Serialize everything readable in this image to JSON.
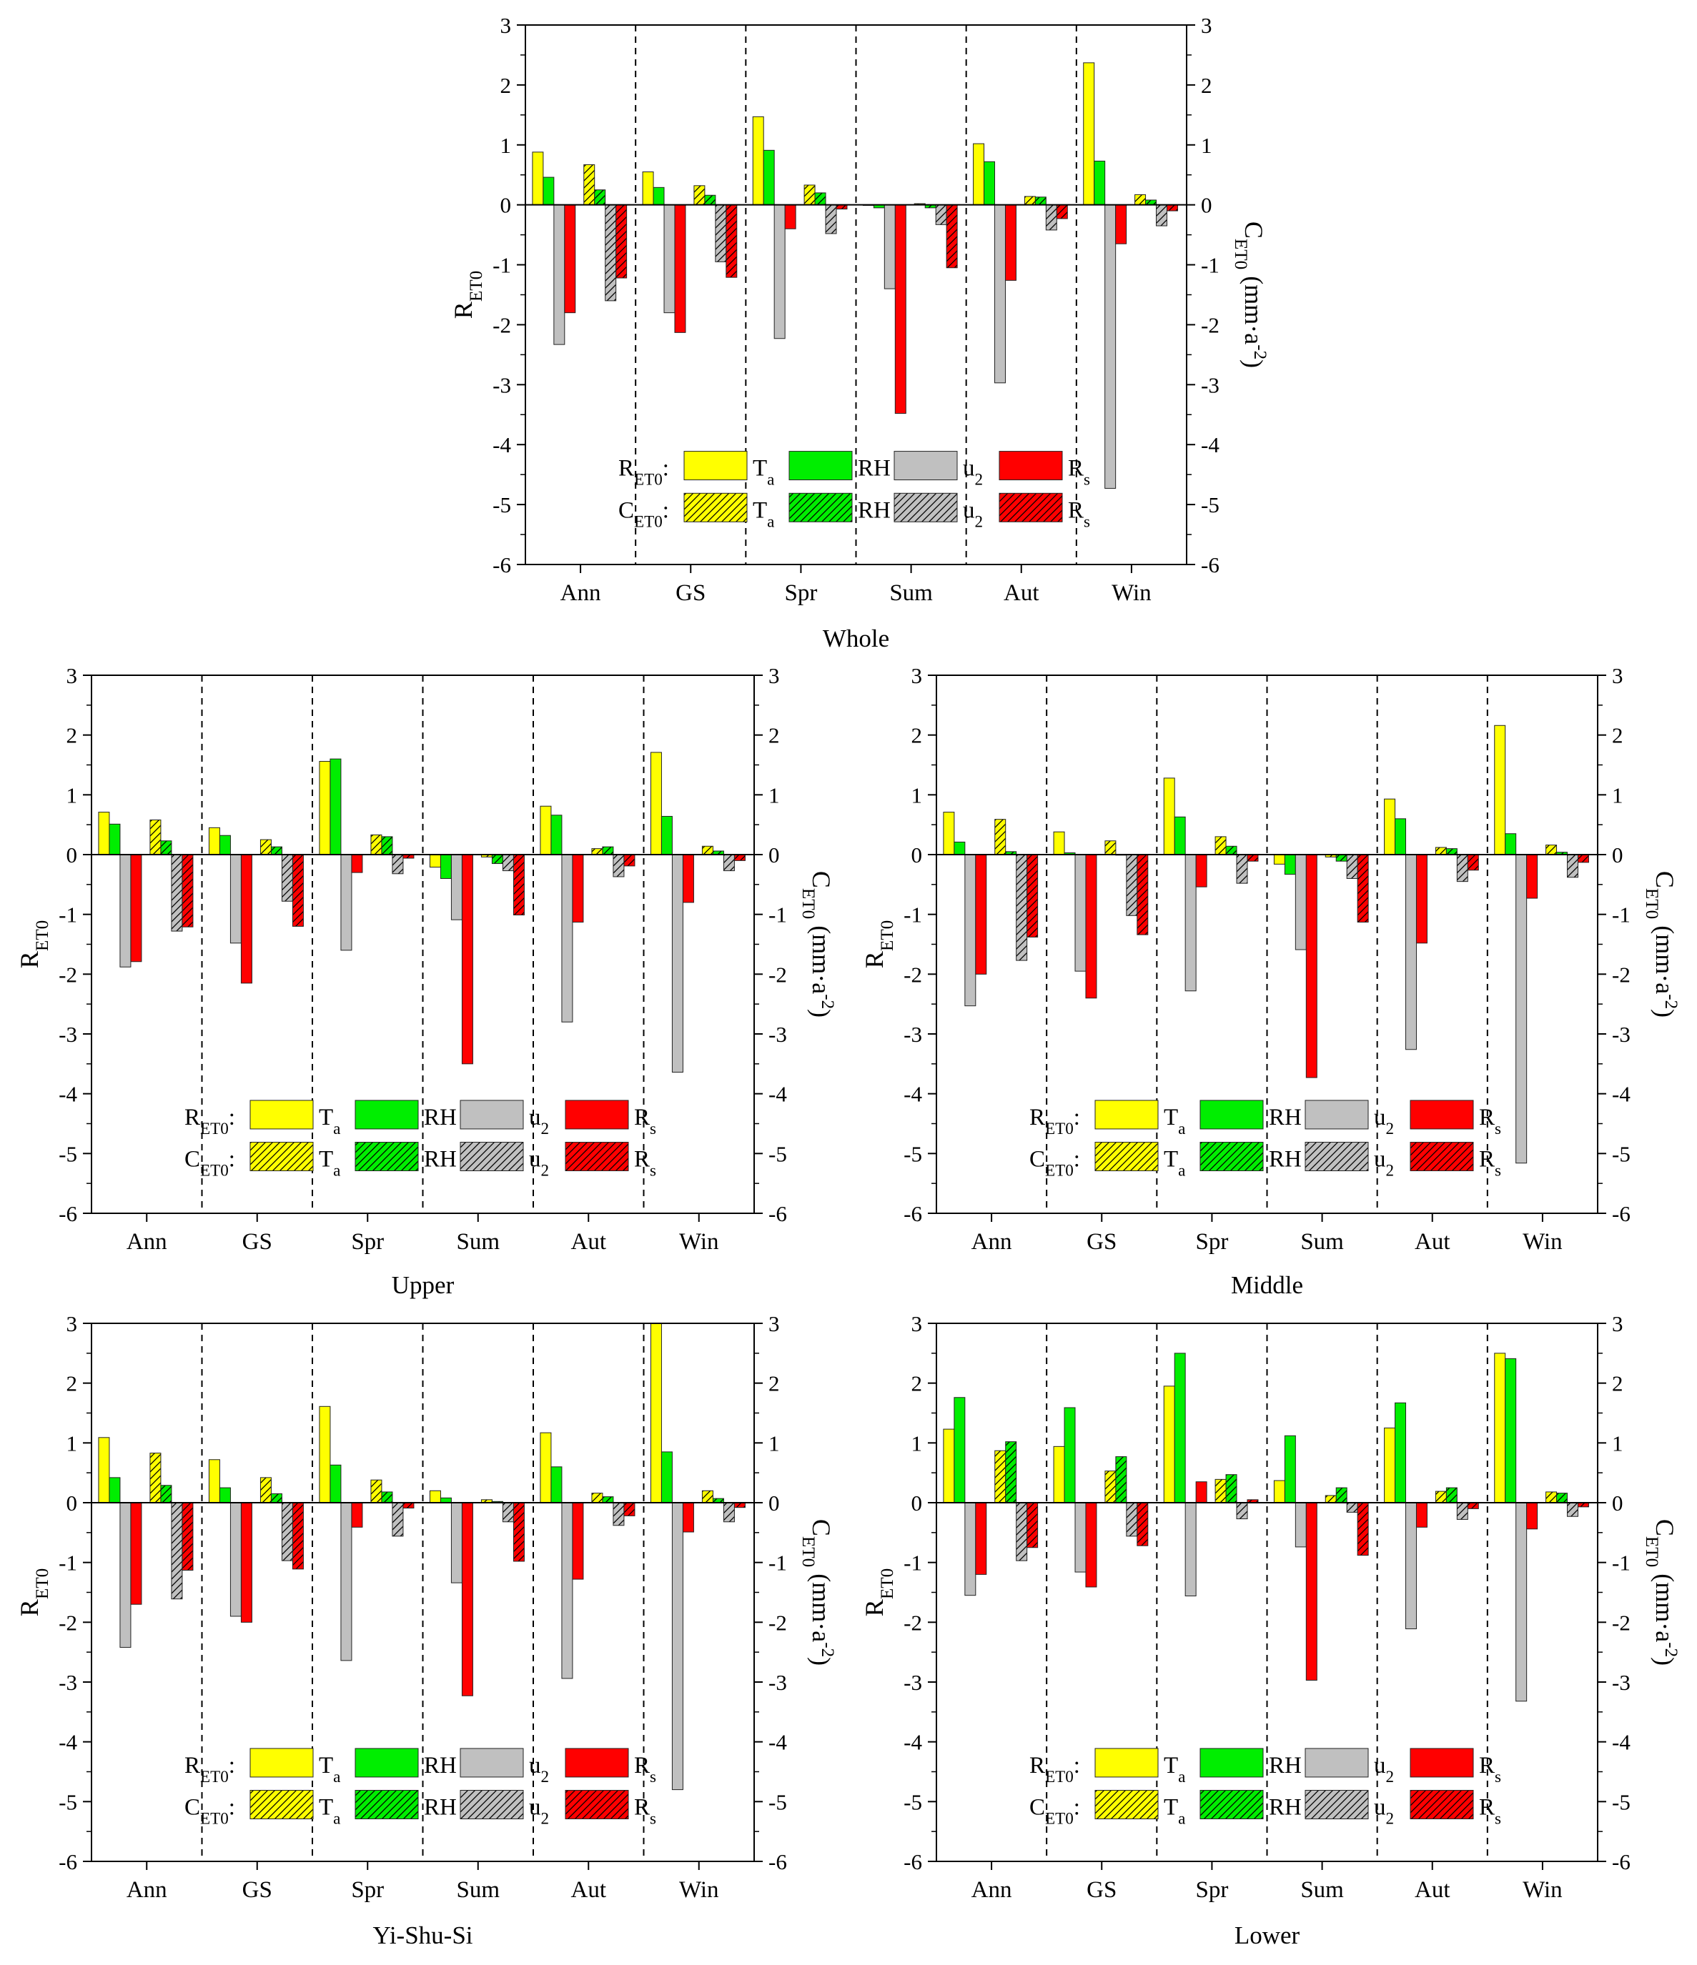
{
  "colors": {
    "Ta": "#ffff00",
    "RH": "#00ee00",
    "u2": "#c0c0c0",
    "Rs": "#ff0000"
  },
  "legend": {
    "r_prefix": "R",
    "r_sub": "ET0",
    "c_prefix": "C",
    "c_sub": "ET0",
    "items": [
      {
        "key": "Ta",
        "main": "T",
        "sub": "a"
      },
      {
        "key": "RH",
        "main": "RH",
        "sub": ""
      },
      {
        "key": "u2",
        "main": "u",
        "sub": "2"
      },
      {
        "key": "Rs",
        "main": "R",
        "sub": "s"
      }
    ]
  },
  "left_axis": {
    "main": "R",
    "sub": "ET0"
  },
  "right_axis": {
    "pre": "C",
    "sub": "ET0",
    "mid": " (mm·a",
    "sup": "-2",
    "post": ")"
  },
  "chart_data": [
    {
      "type": "bar",
      "title": "Whole",
      "categories": [
        "Ann",
        "GS",
        "Spr",
        "Sum",
        "Aut",
        "Win"
      ],
      "ylim": [
        -6,
        3
      ],
      "ticks": [
        "3",
        "2",
        "1",
        "0",
        "-1",
        "-2",
        "-3",
        "-4",
        "-5",
        "-6"
      ],
      "series": [
        {
          "name": "RET0 Ta",
          "values": [
            0.88,
            0.55,
            1.47,
            0.0,
            1.02,
            2.37
          ]
        },
        {
          "name": "RET0 RH",
          "values": [
            0.46,
            0.29,
            0.91,
            -0.05,
            0.72,
            0.73
          ]
        },
        {
          "name": "RET0 u2",
          "values": [
            -2.33,
            -1.8,
            -2.23,
            -1.4,
            -2.97,
            -4.73
          ]
        },
        {
          "name": "RET0 Rs",
          "values": [
            -1.8,
            -2.13,
            -0.4,
            -3.48,
            -1.26,
            -0.65
          ]
        },
        {
          "name": "CET0 Ta",
          "values": [
            0.67,
            0.32,
            0.33,
            0.02,
            0.14,
            0.17
          ]
        },
        {
          "name": "CET0 RH",
          "values": [
            0.25,
            0.16,
            0.2,
            -0.05,
            0.13,
            0.08
          ]
        },
        {
          "name": "CET0 u2",
          "values": [
            -1.6,
            -0.95,
            -0.48,
            -0.33,
            -0.42,
            -0.35
          ]
        },
        {
          "name": "CET0 Rs",
          "values": [
            -1.22,
            -1.21,
            -0.07,
            -1.05,
            -0.23,
            -0.1
          ]
        }
      ]
    },
    {
      "type": "bar",
      "title": "Upper",
      "categories": [
        "Ann",
        "GS",
        "Spr",
        "Sum",
        "Aut",
        "Win"
      ],
      "ylim": [
        -6,
        3
      ],
      "ticks": [
        "3",
        "2",
        "1",
        "0",
        "-1",
        "-2",
        "-3",
        "-4",
        "-5",
        "-6"
      ],
      "series": [
        {
          "name": "RET0 Ta",
          "values": [
            0.71,
            0.45,
            1.56,
            -0.21,
            0.81,
            1.71
          ]
        },
        {
          "name": "RET0 RH",
          "values": [
            0.51,
            0.32,
            1.6,
            -0.4,
            0.66,
            0.64
          ]
        },
        {
          "name": "RET0 u2",
          "values": [
            -1.88,
            -1.48,
            -1.6,
            -1.09,
            -2.8,
            -3.64
          ]
        },
        {
          "name": "RET0 Rs",
          "values": [
            -1.79,
            -2.15,
            -0.3,
            -3.5,
            -1.13,
            -0.8
          ]
        },
        {
          "name": "CET0 Ta",
          "values": [
            0.58,
            0.25,
            0.33,
            -0.04,
            0.1,
            0.14
          ]
        },
        {
          "name": "CET0 RH",
          "values": [
            0.23,
            0.13,
            0.3,
            -0.15,
            0.13,
            0.06
          ]
        },
        {
          "name": "CET0 u2",
          "values": [
            -1.28,
            -0.78,
            -0.32,
            -0.27,
            -0.37,
            -0.27
          ]
        },
        {
          "name": "CET0 Rs",
          "values": [
            -1.21,
            -1.2,
            -0.06,
            -1.01,
            -0.19,
            -0.1
          ]
        }
      ]
    },
    {
      "type": "bar",
      "title": "Middle",
      "categories": [
        "Ann",
        "GS",
        "Spr",
        "Sum",
        "Aut",
        "Win"
      ],
      "ylim": [
        -6,
        3
      ],
      "ticks": [
        "3",
        "2",
        "1",
        "0",
        "-1",
        "-2",
        "-3",
        "-4",
        "-5",
        "-6"
      ],
      "series": [
        {
          "name": "RET0 Ta",
          "values": [
            0.71,
            0.38,
            1.28,
            -0.16,
            0.93,
            2.16
          ]
        },
        {
          "name": "RET0 RH",
          "values": [
            0.21,
            0.03,
            0.63,
            -0.33,
            0.6,
            0.35
          ]
        },
        {
          "name": "RET0 u2",
          "values": [
            -2.53,
            -1.95,
            -2.28,
            -1.59,
            -3.26,
            -5.16
          ]
        },
        {
          "name": "RET0 Rs",
          "values": [
            -2.0,
            -2.4,
            -0.54,
            -3.73,
            -1.48,
            -0.73
          ]
        },
        {
          "name": "CET0 Ta",
          "values": [
            0.59,
            0.23,
            0.3,
            -0.04,
            0.12,
            0.16
          ]
        },
        {
          "name": "CET0 RH",
          "values": [
            0.05,
            0.0,
            0.14,
            -0.11,
            0.1,
            0.04
          ]
        },
        {
          "name": "CET0 u2",
          "values": [
            -1.77,
            -1.02,
            -0.48,
            -0.4,
            -0.45,
            -0.38
          ]
        },
        {
          "name": "CET0 Rs",
          "values": [
            -1.38,
            -1.34,
            -0.11,
            -1.13,
            -0.26,
            -0.13
          ]
        }
      ]
    },
    {
      "type": "bar",
      "title": "Yi-Shu-Si",
      "categories": [
        "Ann",
        "GS",
        "Spr",
        "Sum",
        "Aut",
        "Win"
      ],
      "ylim": [
        -6,
        3
      ],
      "ticks": [
        "3",
        "2",
        "1",
        "0",
        "-1",
        "-2",
        "-3",
        "-4",
        "-5",
        "-6"
      ],
      "series": [
        {
          "name": "RET0 Ta",
          "values": [
            1.09,
            0.72,
            1.61,
            0.2,
            1.17,
            3.0
          ]
        },
        {
          "name": "RET0 RH",
          "values": [
            0.42,
            0.25,
            0.63,
            0.08,
            0.6,
            0.85
          ]
        },
        {
          "name": "RET0 u2",
          "values": [
            -2.42,
            -1.9,
            -2.64,
            -1.34,
            -2.94,
            -4.8
          ]
        },
        {
          "name": "RET0 Rs",
          "values": [
            -1.7,
            -2.0,
            -0.41,
            -3.23,
            -1.28,
            -0.49
          ]
        },
        {
          "name": "CET0 Ta",
          "values": [
            0.83,
            0.42,
            0.38,
            0.05,
            0.16,
            0.2
          ]
        },
        {
          "name": "CET0 RH",
          "values": [
            0.29,
            0.15,
            0.18,
            0.02,
            0.1,
            0.07
          ]
        },
        {
          "name": "CET0 u2",
          "values": [
            -1.61,
            -0.97,
            -0.56,
            -0.32,
            -0.38,
            -0.32
          ]
        },
        {
          "name": "CET0 Rs",
          "values": [
            -1.13,
            -1.11,
            -0.09,
            -0.98,
            -0.22,
            -0.08
          ]
        }
      ]
    },
    {
      "type": "bar",
      "title": "Lower",
      "categories": [
        "Ann",
        "GS",
        "Spr",
        "Sum",
        "Aut",
        "Win"
      ],
      "ylim": [
        -6,
        3
      ],
      "ticks": [
        "3",
        "2",
        "1",
        "0",
        "-1",
        "-2",
        "-3",
        "-4",
        "-5",
        "-6"
      ],
      "series": [
        {
          "name": "RET0 Ta",
          "values": [
            1.23,
            0.94,
            1.95,
            0.37,
            1.25,
            2.5
          ]
        },
        {
          "name": "RET0 RH",
          "values": [
            1.76,
            1.59,
            2.5,
            1.12,
            1.67,
            2.41
          ]
        },
        {
          "name": "RET0 u2",
          "values": [
            -1.55,
            -1.16,
            -1.56,
            -0.74,
            -2.11,
            -3.32
          ]
        },
        {
          "name": "RET0 Rs",
          "values": [
            -1.2,
            -1.41,
            0.35,
            -2.97,
            -0.41,
            -0.44
          ]
        },
        {
          "name": "CET0 Ta",
          "values": [
            0.87,
            0.53,
            0.39,
            0.12,
            0.19,
            0.18
          ]
        },
        {
          "name": "CET0 RH",
          "values": [
            1.02,
            0.77,
            0.47,
            0.25,
            0.25,
            0.16
          ]
        },
        {
          "name": "CET0 u2",
          "values": [
            -0.97,
            -0.56,
            -0.27,
            -0.16,
            -0.28,
            -0.23
          ]
        },
        {
          "name": "CET0 Rs",
          "values": [
            -0.75,
            -0.72,
            0.05,
            -0.88,
            -0.1,
            -0.07
          ]
        }
      ]
    }
  ]
}
